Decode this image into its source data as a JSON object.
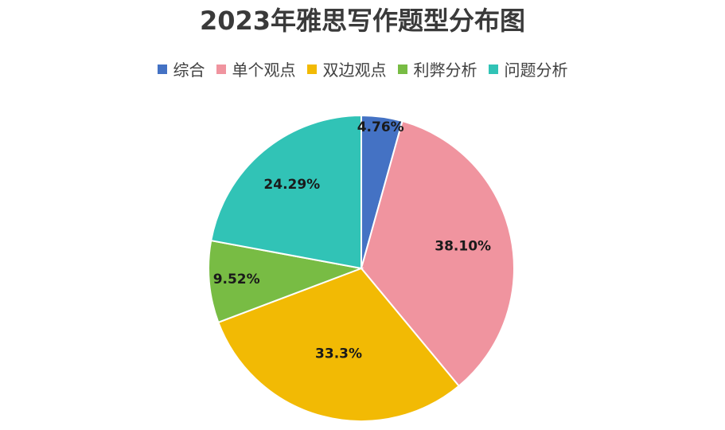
{
  "chart_data": {
    "type": "pie",
    "title": "2023年雅思写作题型分布图",
    "legend_position": "top",
    "slices": [
      {
        "name": "综合",
        "value": 4.76,
        "label": "4.76%",
        "color": "#4472C4"
      },
      {
        "name": "单个观点",
        "value": 38.1,
        "label": "38.10%",
        "color": "#F0949F"
      },
      {
        "name": "双边观点",
        "value": 33.3,
        "label": "33.3%",
        "color": "#F2BA04"
      },
      {
        "name": "利弊分析",
        "value": 9.52,
        "label": "9.52%",
        "color": "#78BC44"
      },
      {
        "name": "问题分析",
        "value": 24.29,
        "label": "24.29%",
        "color": "#31C3B6"
      }
    ]
  }
}
